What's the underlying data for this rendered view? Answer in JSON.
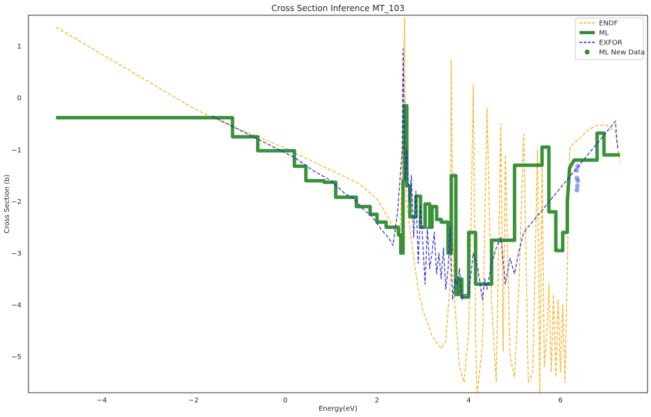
{
  "chart_data": {
    "type": "line",
    "title": "Cross Section Inference MT_103",
    "xlabel": "Energy(eV)",
    "ylabel": "Cross Section (b)",
    "xlim": [
      -5.6,
      7.9
    ],
    "ylim": [
      -5.7,
      1.6
    ],
    "xticks": [
      -4,
      -2,
      0,
      2,
      4,
      6
    ],
    "xtick_labels": [
      "−4",
      "−2",
      "0",
      "2",
      "4",
      "6"
    ],
    "yticks": [
      -5,
      -4,
      -3,
      -2,
      -1,
      0,
      1
    ],
    "ytick_labels": [
      "−5",
      "−4",
      "−3",
      "−2",
      "−1",
      "0",
      "1"
    ],
    "grid": false,
    "legend_position": "top-right",
    "legend": [
      "ENDF",
      "ML",
      "EXFOR",
      "ML New Data"
    ],
    "series": [
      {
        "name": "ENDF",
        "style": "dashed",
        "color": "#FFA500",
        "x": [
          -5.0,
          -2.0,
          -1.5,
          0.0,
          1.0,
          1.6,
          2.0,
          2.3,
          2.5,
          2.55,
          2.6,
          2.62,
          2.65,
          2.7,
          2.8,
          2.9,
          3.0,
          3.2,
          3.4,
          3.5,
          3.6,
          3.62,
          3.65,
          3.7,
          3.8,
          3.9,
          4.0,
          4.05,
          4.1,
          4.15,
          4.18,
          4.2,
          4.3,
          4.4,
          4.5,
          4.6,
          4.7,
          4.75,
          4.8,
          4.9,
          5.0,
          5.1,
          5.2,
          5.3,
          5.4,
          5.5,
          5.55,
          5.6,
          5.65,
          5.7,
          5.75,
          5.8,
          5.85,
          5.9,
          5.95,
          6.0,
          6.05,
          6.1,
          6.2,
          6.3,
          6.4,
          6.6,
          6.8,
          7.0,
          7.2,
          7.3
        ],
        "y": [
          1.37,
          -0.2,
          -0.42,
          -0.97,
          -1.4,
          -1.65,
          -1.95,
          -2.4,
          -2.7,
          -1.4,
          1.55,
          -0.5,
          -2.0,
          -2.4,
          -3.1,
          -3.7,
          -4.1,
          -4.6,
          -4.85,
          -4.7,
          -3.5,
          0.75,
          -2.5,
          -4.0,
          -5.2,
          -5.5,
          -4.5,
          -2.5,
          0.25,
          -4.5,
          -5.8,
          -5.6,
          -4.8,
          -0.2,
          -4.0,
          -5.5,
          -0.5,
          -4.9,
          -1.1,
          -5.0,
          -5.4,
          -3.5,
          -0.7,
          -5.5,
          -5.3,
          -1.0,
          -5.7,
          -1.2,
          -5.2,
          -4.6,
          -3.6,
          -5.3,
          -3.8,
          -5.4,
          -3.9,
          -5.3,
          -4.0,
          -5.5,
          -1.0,
          -0.85,
          -0.8,
          -0.62,
          -0.53,
          -0.52,
          -0.65,
          -1.25
        ]
      },
      {
        "name": "ML",
        "style": "solid-thick",
        "color": "#2E8B2E",
        "x": [
          -5.0,
          -1.15,
          -1.15,
          -0.6,
          -0.6,
          0.2,
          0.2,
          0.45,
          0.45,
          0.85,
          0.85,
          1.1,
          1.1,
          1.55,
          1.55,
          1.85,
          1.85,
          2.0,
          2.0,
          2.2,
          2.2,
          2.47,
          2.47,
          2.52,
          2.52,
          2.57,
          2.57,
          2.6,
          2.6,
          2.65,
          2.65,
          2.72,
          2.72,
          2.85,
          2.85,
          2.95,
          2.95,
          3.05,
          3.05,
          3.15,
          3.15,
          3.2,
          3.2,
          3.3,
          3.3,
          3.4,
          3.4,
          3.55,
          3.55,
          3.62,
          3.62,
          3.72,
          3.72,
          3.78,
          3.78,
          3.85,
          3.85,
          4.0,
          4.0,
          4.15,
          4.15,
          4.22,
          4.22,
          4.5,
          4.5,
          4.7,
          4.7,
          5.0,
          5.0,
          5.15,
          5.15,
          5.3,
          5.3,
          5.6,
          5.6,
          5.75,
          5.75,
          5.9,
          5.9,
          6.05,
          6.05,
          6.15,
          6.15,
          6.2,
          6.3,
          6.35,
          6.45,
          6.45,
          6.8,
          6.8,
          6.95,
          6.95,
          7.3
        ],
        "y": [
          -0.38,
          -0.38,
          -0.75,
          -0.75,
          -1.02,
          -1.02,
          -1.32,
          -1.32,
          -1.6,
          -1.6,
          -1.63,
          -1.63,
          -1.92,
          -1.92,
          -2.1,
          -2.1,
          -2.25,
          -2.25,
          -2.4,
          -2.4,
          -2.5,
          -2.5,
          -2.65,
          -2.65,
          -3.0,
          -3.0,
          -1.6,
          -1.6,
          -0.15,
          -0.15,
          -1.7,
          -1.7,
          -2.3,
          -2.3,
          -1.9,
          -1.9,
          -2.5,
          -2.5,
          -2.05,
          -2.05,
          -2.5,
          -2.5,
          -2.1,
          -2.1,
          -2.35,
          -2.35,
          -2.4,
          -2.4,
          -3.0,
          -3.0,
          -1.5,
          -1.5,
          -3.8,
          -3.8,
          -3.5,
          -3.5,
          -3.85,
          -3.85,
          -2.6,
          -2.6,
          -3.6,
          -3.6,
          -3.6,
          -3.6,
          -2.75,
          -2.75,
          -2.75,
          -2.75,
          -1.3,
          -1.3,
          -1.3,
          -1.3,
          -1.3,
          -1.3,
          -0.95,
          -0.95,
          -2.2,
          -2.2,
          -2.95,
          -2.95,
          -2.6,
          -2.6,
          -2.0,
          -1.35,
          -1.2,
          -1.2,
          -1.2,
          -1.2,
          -1.2,
          -0.68,
          -0.68,
          -1.1,
          -1.1
        ]
      },
      {
        "name": "EXFOR",
        "style": "dashed",
        "color": "#1F1FCC",
        "x": [
          -1.6,
          -0.7,
          0.2,
          0.6,
          1.0,
          1.3,
          1.5,
          1.7,
          1.9,
          2.1,
          2.25,
          2.35,
          2.45,
          2.5,
          2.55,
          2.57,
          2.6,
          2.62,
          2.65,
          2.7,
          2.75,
          2.8,
          2.85,
          2.9,
          2.95,
          3.0,
          3.05,
          3.1,
          3.15,
          3.2,
          3.25,
          3.3,
          3.35,
          3.4,
          3.45,
          3.5,
          3.55,
          3.6,
          3.62,
          3.65,
          3.7,
          3.75,
          3.8,
          3.85,
          3.9,
          4.0,
          4.1,
          4.2,
          4.3,
          4.35,
          4.4,
          4.5,
          4.6,
          4.7,
          4.8,
          4.9,
          5.0,
          5.1,
          5.2,
          7.2,
          7.25
        ],
        "y": [
          -0.35,
          -0.75,
          -1.15,
          -1.4,
          -1.6,
          -1.85,
          -1.95,
          -2.15,
          -2.3,
          -2.55,
          -2.7,
          -2.85,
          -2.2,
          -1.6,
          -1.0,
          0.95,
          -0.6,
          -1.6,
          -1.0,
          -2.0,
          -1.5,
          -2.7,
          -1.8,
          -3.2,
          -2.1,
          -2.8,
          -3.6,
          -2.5,
          -3.3,
          -3.0,
          -2.6,
          -3.4,
          -3.0,
          -3.5,
          -2.9,
          -3.7,
          -3.3,
          -2.5,
          -3.2,
          -3.9,
          -3.5,
          -3.6,
          -3.3,
          -3.9,
          -3.8,
          -3.8,
          -3.0,
          -3.3,
          -3.9,
          -3.5,
          -3.7,
          -3.2,
          -2.9,
          -2.7,
          -3.6,
          -3.1,
          -3.4,
          -2.95,
          -2.6,
          -0.45,
          -1.0
        ]
      }
    ],
    "scatter": {
      "name": "ML New Data",
      "color": "#2E8B2E",
      "points": [
        {
          "x": 6.36,
          "y": -1.55
        },
        {
          "x": 6.38,
          "y": -1.32
        },
        {
          "x": 6.36,
          "y": -1.78
        },
        {
          "x": 6.38,
          "y": -1.6
        },
        {
          "x": 6.35,
          "y": -1.4
        },
        {
          "x": 6.37,
          "y": -1.7
        }
      ]
    }
  }
}
